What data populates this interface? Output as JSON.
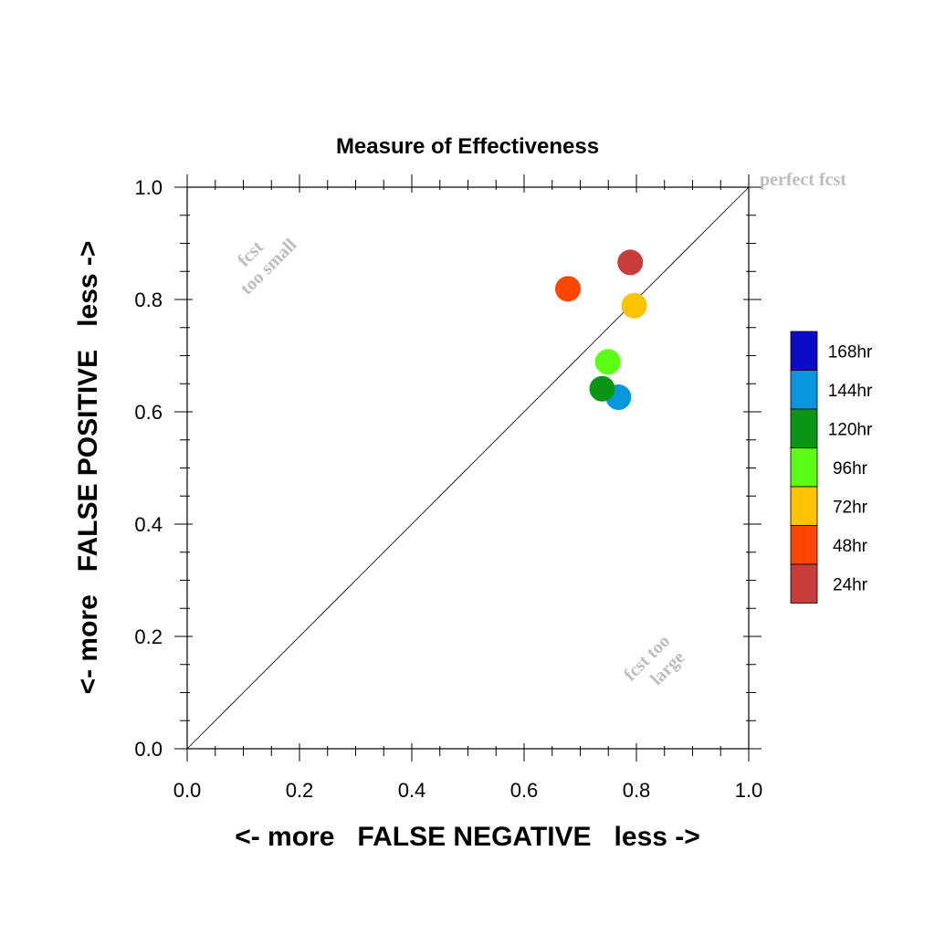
{
  "chart_data": {
    "type": "scatter",
    "title": "Measure of Effectiveness",
    "xlabel": "<- more   FALSE NEGATIVE   less ->",
    "ylabel": "<- more   FALSE POSITIVE   less ->",
    "xlim": [
      0.0,
      1.0
    ],
    "ylim": [
      0.0,
      1.0
    ],
    "x_ticks": [
      "0.0",
      "0.2",
      "0.4",
      "0.6",
      "0.8",
      "1.0"
    ],
    "y_ticks": [
      "0.0",
      "0.2",
      "0.4",
      "0.6",
      "0.8",
      "1.0"
    ],
    "grid": false,
    "diagonal_line": true,
    "legend_placement": "right",
    "annotations": {
      "perfect": "perfect fcst",
      "small_1": "fcst",
      "small_2": "too small",
      "large_1": "fcst too",
      "large_2": "large"
    },
    "series": [
      {
        "name": "168hr",
        "color": "#0a0ac8",
        "points": []
      },
      {
        "name": "144hr",
        "color": "#0a96dc",
        "points": [
          [
            0.768,
            0.626
          ]
        ]
      },
      {
        "name": "120hr",
        "color": "#0a9614",
        "points": [
          [
            0.739,
            0.641
          ]
        ]
      },
      {
        "name": "96hr",
        "color": "#5aff14",
        "points": [
          [
            0.749,
            0.689
          ]
        ]
      },
      {
        "name": "72hr",
        "color": "#ffc300",
        "points": [
          [
            0.796,
            0.789
          ]
        ]
      },
      {
        "name": "48hr",
        "color": "#ff4600",
        "points": [
          [
            0.678,
            0.819
          ]
        ]
      },
      {
        "name": "24hr",
        "color": "#c83c3c",
        "points": [
          [
            0.789,
            0.866
          ]
        ]
      }
    ]
  }
}
